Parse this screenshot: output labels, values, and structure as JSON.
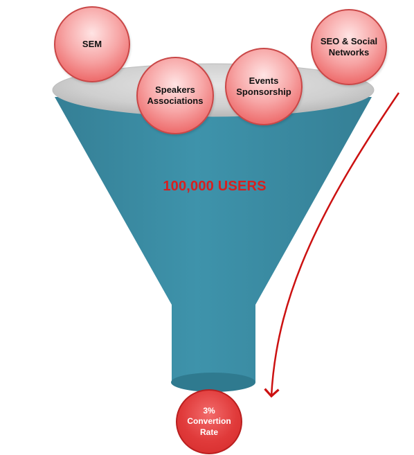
{
  "diagram": {
    "sources": [
      {
        "label": "SEM"
      },
      {
        "label": "Speakers\nAssociations"
      },
      {
        "label": "Events\nSponsorship"
      },
      {
        "label": "SEO & Social\nNetworks"
      }
    ],
    "funnel_label": "100,000 USERS",
    "result_label": "3%\nConvertion\nRate",
    "colors": {
      "funnel_body": "#3b8fa7",
      "funnel_rim": "#c8c8c8",
      "bubble": "#f08a8a",
      "result": "#e03333",
      "arrow": "#cc1111",
      "label": "#d81e1e"
    }
  }
}
